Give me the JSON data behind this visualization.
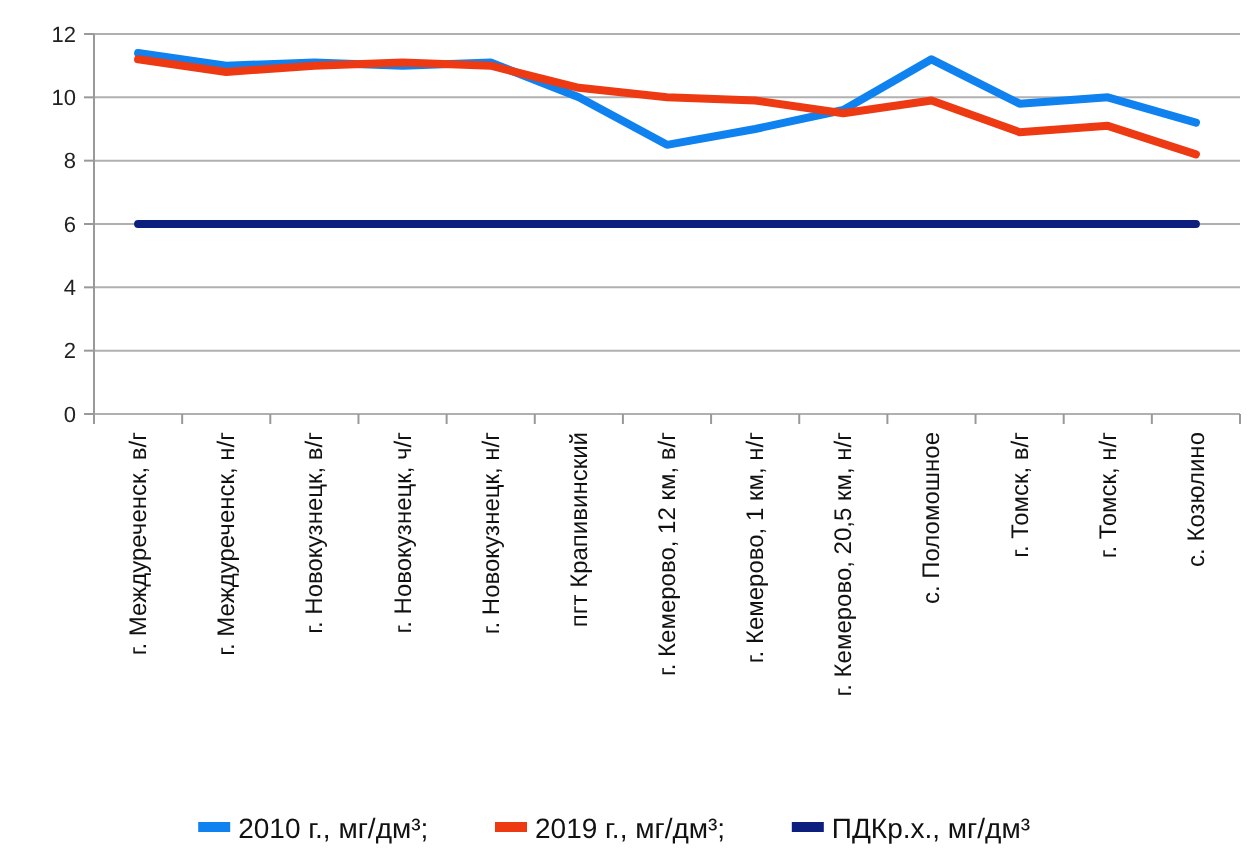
{
  "chart_data": {
    "type": "line",
    "categories": [
      "г. Междуреченск, в/г",
      "г. Междуреченск, н/г",
      "г. Новокузнецк, в/г",
      "г. Новокузнецк, ч/г",
      "г. Новокузнецк, н/г",
      "пгт Крапивинский",
      "г. Кемерово, 12 км, в/г",
      "г. Кемерово, 1 км, н/г",
      "г. Кемерово, 20,5 км, н/г",
      "с. Поломошное",
      "г. Томск, в/г",
      "г. Томск, н/г",
      "с. Козюлино"
    ],
    "series": [
      {
        "name": "2010 г., мг/дм³;",
        "color": "#0f82f0",
        "values": [
          11.4,
          11.0,
          11.1,
          11.0,
          11.1,
          10.0,
          8.5,
          9.0,
          9.6,
          11.2,
          9.8,
          10.0,
          9.2
        ]
      },
      {
        "name": "2019 г., мг/дм³;",
        "color": "#ee3a12",
        "values": [
          11.2,
          10.8,
          11.0,
          11.1,
          11.0,
          10.3,
          10.0,
          9.9,
          9.5,
          9.9,
          8.9,
          9.1,
          8.2
        ]
      },
      {
        "name": "ПДКр.х., мг/дм³",
        "color": "#0c1f7f",
        "values": [
          6,
          6,
          6,
          6,
          6,
          6,
          6,
          6,
          6,
          6,
          6,
          6,
          6
        ]
      }
    ],
    "ylim": [
      0,
      12
    ],
    "yticks": [
      0,
      2,
      4,
      6,
      8,
      10,
      12
    ],
    "grid": "y",
    "legend": "bottom",
    "line_style": "solid"
  }
}
